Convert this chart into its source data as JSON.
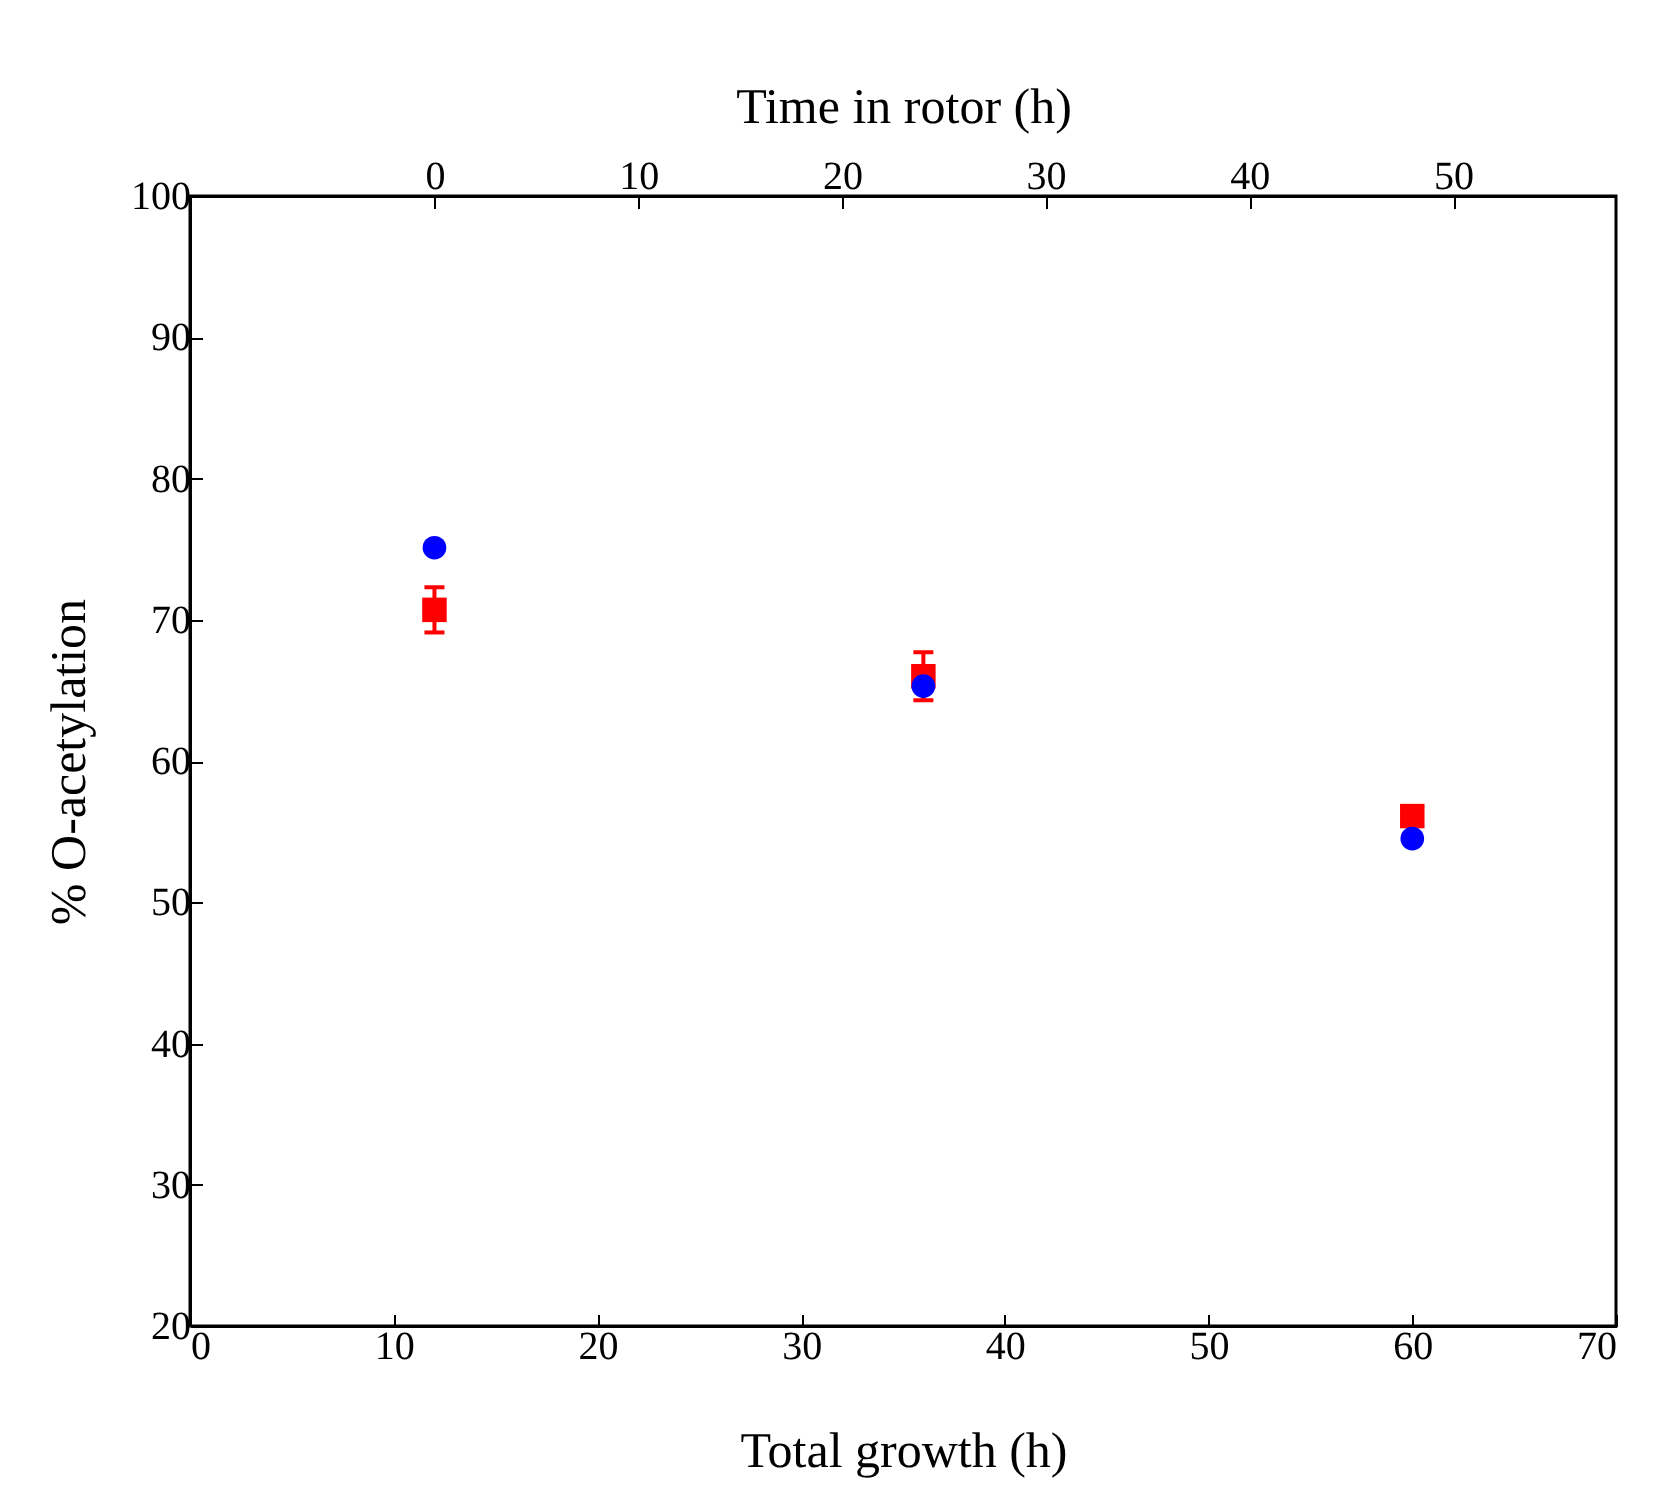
{
  "chart_data": {
    "type": "scatter",
    "xlabel": "Total growth  (h)",
    "ylabel": "% O-acetylation",
    "x2label": "Time in rotor (h)",
    "x": [
      12,
      36,
      60
    ],
    "series": [
      {
        "color": "#ff0000",
        "marker": "square",
        "values": [
          70.7,
          66.0,
          56.1
        ],
        "errors": [
          1.6,
          1.7,
          null
        ]
      },
      {
        "color": "#0000ff",
        "marker": "circle",
        "values": [
          75.1,
          65.3,
          54.5
        ]
      }
    ],
    "xlim": [
      0,
      70
    ],
    "xticks": [
      0,
      10,
      20,
      30,
      40,
      50,
      60,
      70
    ],
    "ylim": [
      20,
      100
    ],
    "yticks": [
      20,
      30,
      40,
      50,
      60,
      70,
      80,
      90,
      100
    ],
    "x2lim": [
      -12,
      58
    ],
    "x2ticks": [
      0,
      10,
      20,
      30,
      40,
      50
    ],
    "grid": false
  }
}
